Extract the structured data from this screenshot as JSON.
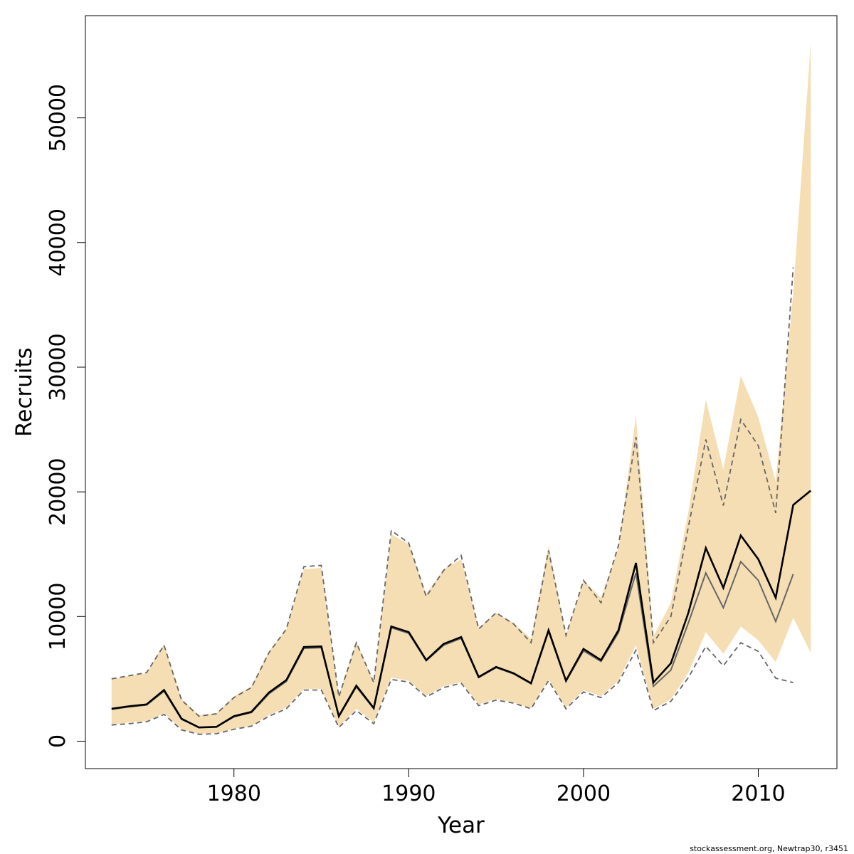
{
  "chart_data": {
    "type": "line",
    "xlabel": "Year",
    "ylabel": "Recruits",
    "xlim": [
      1971.5,
      2014.5
    ],
    "ylim": [
      -2200,
      58200
    ],
    "xticks": [
      1980,
      1990,
      2000,
      2010
    ],
    "yticks": [
      0,
      10000,
      20000,
      30000,
      40000,
      50000
    ],
    "grid": false,
    "credit": "stockassessment.org, Newtrap30, r3451",
    "colors": {
      "band": "#f5deb3",
      "estimate": "#000000",
      "comparison": "#666666",
      "comparison_ci": "#666666"
    },
    "x": [
      1973,
      1974,
      1975,
      1976,
      1977,
      1978,
      1979,
      1980,
      1981,
      1982,
      1983,
      1984,
      1985,
      1986,
      1987,
      1988,
      1989,
      1990,
      1991,
      1992,
      1993,
      1994,
      1995,
      1996,
      1997,
      1998,
      1999,
      2000,
      2001,
      2002,
      2003,
      2004,
      2005,
      2006,
      2007,
      2008,
      2009,
      2010,
      2011,
      2012,
      2013
    ],
    "series": [
      {
        "role": "estimate",
        "values": [
          2600,
          2800,
          2950,
          4100,
          1800,
          1100,
          1150,
          2000,
          2350,
          3900,
          4900,
          7550,
          7600,
          2000,
          4450,
          2650,
          9200,
          8750,
          6500,
          7800,
          8350,
          5150,
          5950,
          5450,
          4650,
          8900,
          4850,
          7400,
          6500,
          8900,
          14300,
          4700,
          6250,
          10300,
          15500,
          12300,
          16500,
          14600,
          11500,
          18950,
          20100
        ]
      },
      {
        "role": "band-lower",
        "values": [
          1350,
          1500,
          1600,
          2250,
          950,
          600,
          650,
          1000,
          1250,
          2100,
          2700,
          4200,
          4200,
          1150,
          2600,
          1500,
          5100,
          4850,
          3650,
          4400,
          4750,
          2950,
          3400,
          3100,
          2650,
          4950,
          2700,
          4100,
          3600,
          4850,
          7700,
          2600,
          3350,
          5500,
          8750,
          7000,
          9200,
          8100,
          6350,
          9900,
          7100
        ]
      },
      {
        "role": "band-upper",
        "values": [
          4950,
          5250,
          5450,
          7800,
          3400,
          2100,
          2250,
          3600,
          4400,
          7200,
          9000,
          13800,
          13900,
          3700,
          8000,
          4800,
          16600,
          15800,
          11800,
          13800,
          14600,
          9100,
          10300,
          9500,
          8200,
          15700,
          8500,
          12900,
          11500,
          15500,
          26100,
          8400,
          11100,
          18400,
          27400,
          21800,
          29300,
          26000,
          20800,
          36000,
          56000
        ]
      },
      {
        "role": "comparison",
        "values": [
          2550,
          2750,
          2900,
          4000,
          1750,
          1100,
          1150,
          1950,
          2300,
          3800,
          4800,
          7450,
          7500,
          1950,
          4350,
          2600,
          9100,
          8650,
          6450,
          7700,
          8250,
          5100,
          5900,
          5400,
          4600,
          8800,
          4800,
          7250,
          6400,
          8700,
          13500,
          4400,
          5700,
          9500,
          13500,
          10700,
          14400,
          12900,
          9600,
          13400,
          null
        ]
      },
      {
        "role": "comparison-lower",
        "values": [
          1300,
          1400,
          1550,
          2150,
          900,
          550,
          600,
          950,
          1200,
          2000,
          2600,
          4100,
          4100,
          1100,
          2450,
          1400,
          4950,
          4750,
          3550,
          4300,
          4650,
          2850,
          3300,
          3050,
          2600,
          4850,
          2600,
          3950,
          3500,
          4700,
          7300,
          2450,
          3200,
          5100,
          7600,
          6050,
          7900,
          7200,
          5050,
          4700,
          null
        ]
      },
      {
        "role": "comparison-upper",
        "values": [
          5000,
          5250,
          5500,
          7700,
          3300,
          2000,
          2200,
          3500,
          4300,
          7100,
          9000,
          14000,
          14100,
          3550,
          7900,
          4700,
          16900,
          15900,
          11600,
          13700,
          14900,
          9000,
          10300,
          9400,
          7900,
          15300,
          8500,
          12900,
          11100,
          15700,
          24400,
          7900,
          10000,
          17200,
          24200,
          18900,
          25800,
          23700,
          18300,
          38000,
          null
        ]
      }
    ]
  }
}
